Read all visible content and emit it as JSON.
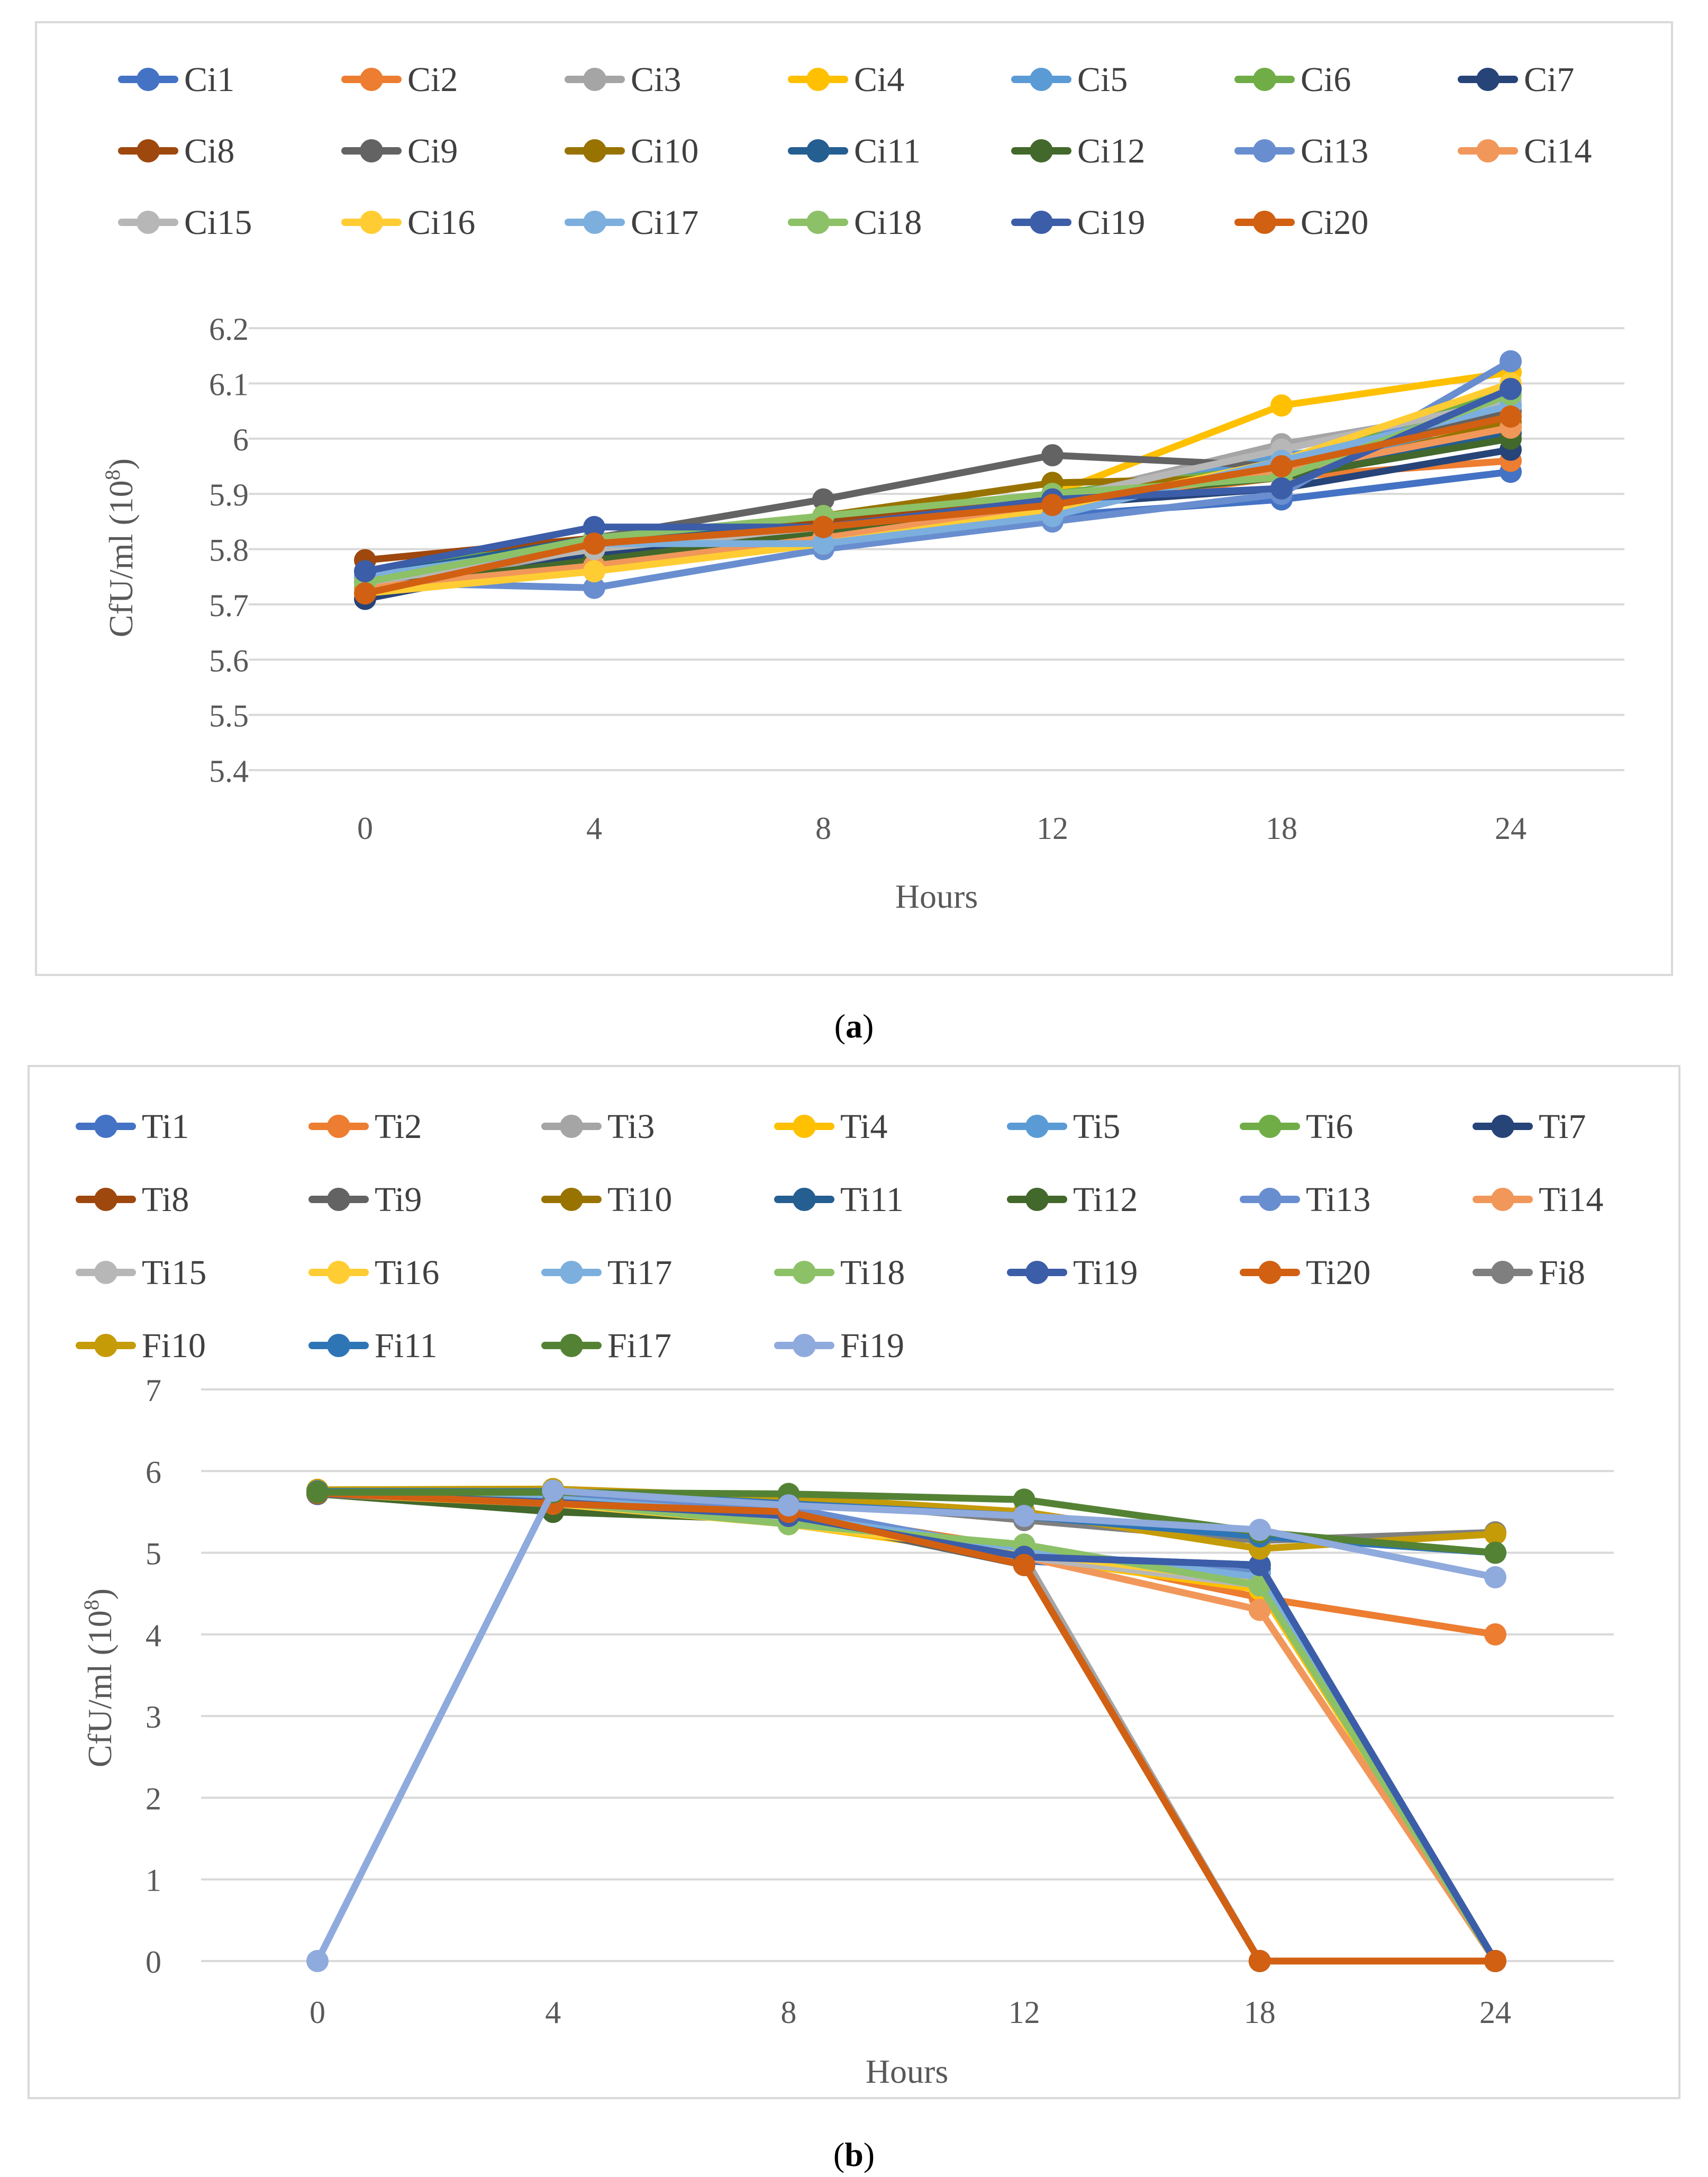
{
  "panels": [
    {
      "caption_label": "a",
      "chart_data": {
        "type": "line",
        "xlabel": "Hours",
        "ylabel_main": "CfU/ml (10",
        "ylabel_sup": "8",
        "ylabel_tail": ")",
        "categories": [
          "0",
          "4",
          "8",
          "12",
          "18",
          "24"
        ],
        "ylim": [
          5.4,
          6.2
        ],
        "yticks": [
          5.4,
          5.5,
          5.6,
          5.7,
          5.8,
          5.9,
          6,
          6.1,
          6.2
        ],
        "ytick_labels": [
          "5.4",
          "5.5",
          "5.6",
          "5.7",
          "5.8",
          "5.9",
          "6",
          "6.1",
          "6.2"
        ],
        "grid": true,
        "legend_position": "top",
        "series": [
          {
            "name": "Ci1",
            "color": "#4472C4",
            "values": [
              5.74,
              5.8,
              5.82,
              5.86,
              5.89,
              5.94
            ]
          },
          {
            "name": "Ci2",
            "color": "#ED7D31",
            "values": [
              5.73,
              5.81,
              5.83,
              5.88,
              5.93,
              5.96
            ]
          },
          {
            "name": "Ci3",
            "color": "#A5A5A5",
            "values": [
              5.74,
              5.79,
              5.84,
              5.89,
              5.99,
              6.06
            ]
          },
          {
            "name": "Ci4",
            "color": "#FFC000",
            "values": [
              5.72,
              5.76,
              5.81,
              5.9,
              6.06,
              6.12
            ]
          },
          {
            "name": "Ci5",
            "color": "#5B9BD5",
            "values": [
              5.75,
              5.82,
              5.85,
              5.89,
              5.97,
              6.01
            ]
          },
          {
            "name": "Ci6",
            "color": "#70AD47",
            "values": [
              5.76,
              5.82,
              5.86,
              5.9,
              5.95,
              6.09
            ]
          },
          {
            "name": "Ci7",
            "color": "#264478",
            "values": [
              5.71,
              5.79,
              5.82,
              5.88,
              5.91,
              5.98
            ]
          },
          {
            "name": "Ci8",
            "color": "#9E480E",
            "values": [
              5.78,
              5.82,
              5.85,
              5.89,
              5.94,
              6.02
            ]
          },
          {
            "name": "Ci9",
            "color": "#636363",
            "values": [
              5.74,
              5.82,
              5.89,
              5.97,
              5.95,
              6.05
            ]
          },
          {
            "name": "Ci10",
            "color": "#997300",
            "values": [
              5.73,
              5.81,
              5.86,
              5.92,
              5.93,
              6.03
            ]
          },
          {
            "name": "Ci11",
            "color": "#255E91",
            "values": [
              5.75,
              5.82,
              5.84,
              5.89,
              5.93,
              6.01
            ]
          },
          {
            "name": "Ci12",
            "color": "#43682B",
            "values": [
              5.73,
              5.78,
              5.83,
              5.89,
              5.93,
              6.0
            ]
          },
          {
            "name": "Ci13",
            "color": "#698ED0",
            "values": [
              5.74,
              5.73,
              5.8,
              5.85,
              5.9,
              6.14
            ]
          },
          {
            "name": "Ci14",
            "color": "#F1975A",
            "values": [
              5.73,
              5.77,
              5.82,
              5.88,
              5.94,
              6.02
            ]
          },
          {
            "name": "Ci15",
            "color": "#B7B7B7",
            "values": [
              5.74,
              5.8,
              5.84,
              5.89,
              5.98,
              6.07
            ]
          },
          {
            "name": "Ci16",
            "color": "#FFCD33",
            "values": [
              5.72,
              5.76,
              5.81,
              5.87,
              5.96,
              6.1
            ]
          },
          {
            "name": "Ci17",
            "color": "#7CAFDD",
            "values": [
              5.75,
              5.81,
              5.81,
              5.86,
              5.96,
              6.06
            ]
          },
          {
            "name": "Ci18",
            "color": "#8CC168",
            "values": [
              5.74,
              5.82,
              5.86,
              5.9,
              5.93,
              6.08
            ]
          },
          {
            "name": "Ci19",
            "color": "#3C5DA8",
            "values": [
              5.76,
              5.84,
              5.84,
              5.89,
              5.91,
              6.09
            ]
          },
          {
            "name": "Ci20",
            "color": "#D26012",
            "values": [
              5.72,
              5.81,
              5.84,
              5.88,
              5.95,
              6.04
            ]
          }
        ]
      }
    },
    {
      "caption_label": "b",
      "chart_data": {
        "type": "line",
        "xlabel": "Hours",
        "ylabel_main": "CfU/ml (10",
        "ylabel_sup": "8",
        "ylabel_tail": ")",
        "categories": [
          "0",
          "4",
          "8",
          "12",
          "18",
          "24"
        ],
        "ylim": [
          0,
          7
        ],
        "yticks": [
          0,
          1,
          2,
          3,
          4,
          5,
          6,
          7
        ],
        "ytick_labels": [
          "0",
          "1",
          "2",
          "3",
          "4",
          "5",
          "6",
          "7"
        ],
        "grid": true,
        "legend_position": "top",
        "series": [
          {
            "name": "Ti1",
            "color": "#4472C4",
            "values": [
              5.73,
              5.65,
              5.45,
              4.9,
              4.75,
              0
            ]
          },
          {
            "name": "Ti2",
            "color": "#ED7D31",
            "values": [
              5.75,
              5.68,
              5.5,
              5.05,
              4.45,
              4.0
            ]
          },
          {
            "name": "Ti3",
            "color": "#A5A5A5",
            "values": [
              5.74,
              5.62,
              5.35,
              4.95,
              0,
              0
            ]
          },
          {
            "name": "Ti4",
            "color": "#FFC000",
            "values": [
              5.72,
              5.6,
              5.35,
              4.95,
              4.55,
              0
            ]
          },
          {
            "name": "Ti5",
            "color": "#5B9BD5",
            "values": [
              5.75,
              5.66,
              5.45,
              5.0,
              4.7,
              0
            ]
          },
          {
            "name": "Ti6",
            "color": "#70AD47",
            "values": [
              5.74,
              5.64,
              5.4,
              5.05,
              4.6,
              0
            ]
          },
          {
            "name": "Ti7",
            "color": "#264478",
            "values": [
              5.72,
              5.62,
              5.5,
              4.95,
              4.85,
              0
            ]
          },
          {
            "name": "Ti8",
            "color": "#9E480E",
            "values": [
              5.75,
              5.6,
              5.45,
              4.85,
              0,
              0
            ]
          },
          {
            "name": "Ti9",
            "color": "#636363",
            "values": [
              5.73,
              5.55,
              5.45,
              4.85,
              0,
              0
            ]
          },
          {
            "name": "Ti10",
            "color": "#997300",
            "values": [
              5.74,
              5.6,
              5.45,
              4.95,
              4.7,
              0
            ]
          },
          {
            "name": "Ti11",
            "color": "#255E91",
            "values": [
              5.75,
              5.62,
              5.5,
              4.95,
              4.8,
              0
            ]
          },
          {
            "name": "Ti12",
            "color": "#43682B",
            "values": [
              5.72,
              5.5,
              5.4,
              5.0,
              4.65,
              0
            ]
          },
          {
            "name": "Ti13",
            "color": "#698ED0",
            "values": [
              5.74,
              5.66,
              5.55,
              5.0,
              4.75,
              0
            ]
          },
          {
            "name": "Ti14",
            "color": "#F1975A",
            "values": [
              5.73,
              5.6,
              5.45,
              4.95,
              4.3,
              0
            ]
          },
          {
            "name": "Ti15",
            "color": "#B7B7B7",
            "values": [
              5.74,
              5.62,
              5.4,
              4.95,
              4.6,
              0
            ]
          },
          {
            "name": "Ti16",
            "color": "#FFCD33",
            "values": [
              5.72,
              5.6,
              5.35,
              5.0,
              4.65,
              0
            ]
          },
          {
            "name": "Ti17",
            "color": "#7CAFDD",
            "values": [
              5.75,
              5.66,
              5.45,
              5.05,
              4.7,
              0
            ]
          },
          {
            "name": "Ti18",
            "color": "#8CC168",
            "values": [
              5.74,
              5.62,
              5.35,
              5.1,
              4.6,
              0
            ]
          },
          {
            "name": "Ti19",
            "color": "#3C5DA8",
            "values": [
              5.72,
              5.62,
              5.45,
              4.95,
              4.85,
              0
            ]
          },
          {
            "name": "Ti20",
            "color": "#D26012",
            "values": [
              5.73,
              5.6,
              5.5,
              4.85,
              0,
              0
            ]
          },
          {
            "name": "Fi8",
            "color": "#7F7F7F",
            "values": [
              5.76,
              5.76,
              5.65,
              5.4,
              5.15,
              5.25
            ]
          },
          {
            "name": "Fi10",
            "color": "#C59B08",
            "values": [
              5.77,
              5.78,
              5.68,
              5.5,
              5.05,
              5.23
            ]
          },
          {
            "name": "Fi11",
            "color": "#2E75B6",
            "values": [
              5.75,
              5.75,
              5.6,
              5.45,
              5.2,
              5.0
            ]
          },
          {
            "name": "Fi17",
            "color": "#548235",
            "values": [
              5.74,
              5.74,
              5.72,
              5.65,
              5.25,
              5.0
            ]
          },
          {
            "name": "Fi19",
            "color": "#8FAADC",
            "values": [
              0,
              5.76,
              5.58,
              5.45,
              5.28,
              4.7
            ]
          }
        ]
      }
    }
  ]
}
